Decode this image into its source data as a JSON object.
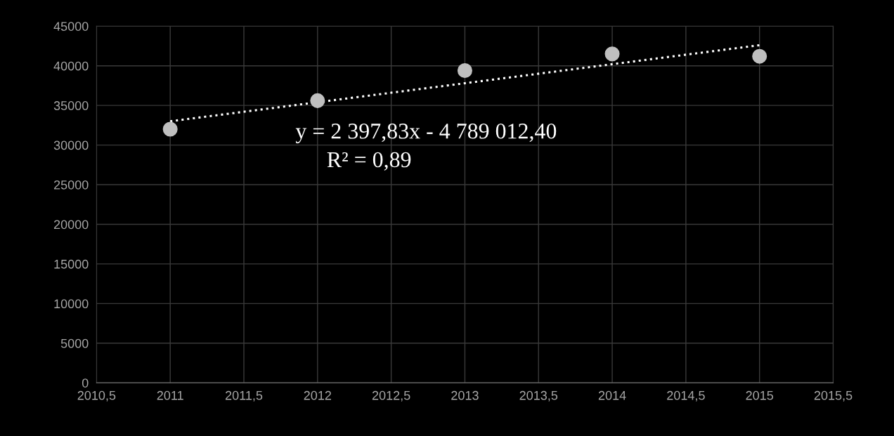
{
  "chart_data": {
    "type": "scatter",
    "series": [
      {
        "color": "#bfbfbf",
        "marker": "circle",
        "x": [
          2011,
          2012,
          2013,
          2014,
          2015
        ],
        "values": [
          32000,
          35600,
          39400,
          41500,
          41200
        ]
      },
      {
        "type": "line",
        "color": "#ffffff",
        "marker": "none",
        "line_style": "dotted",
        "x": [
          2011,
          2015
        ],
        "values": [
          33000,
          42600
        ]
      }
    ],
    "xlim": [
      2010.5,
      2015.5
    ],
    "xticks": [
      {
        "value": 2010.5,
        "label": "2010,5"
      },
      2011,
      {
        "value": 2011.5,
        "label": "2011,5"
      },
      2012,
      {
        "value": 2012.5,
        "label": "2012,5"
      },
      2013,
      {
        "value": 2013.5,
        "label": "2013,5"
      },
      2014,
      {
        "value": 2014.5,
        "label": "2014,5"
      },
      2015,
      {
        "value": 2015.5,
        "label": "2015,5"
      }
    ],
    "ylim": [
      0,
      45000
    ],
    "yticks": [
      0,
      5000,
      10000,
      15000,
      20000,
      25000,
      30000,
      35000,
      40000,
      45000
    ],
    "grid": true,
    "annotations": [
      "y = 2 397,83x - 4 789 012,40",
      "R² = 0,89"
    ]
  }
}
